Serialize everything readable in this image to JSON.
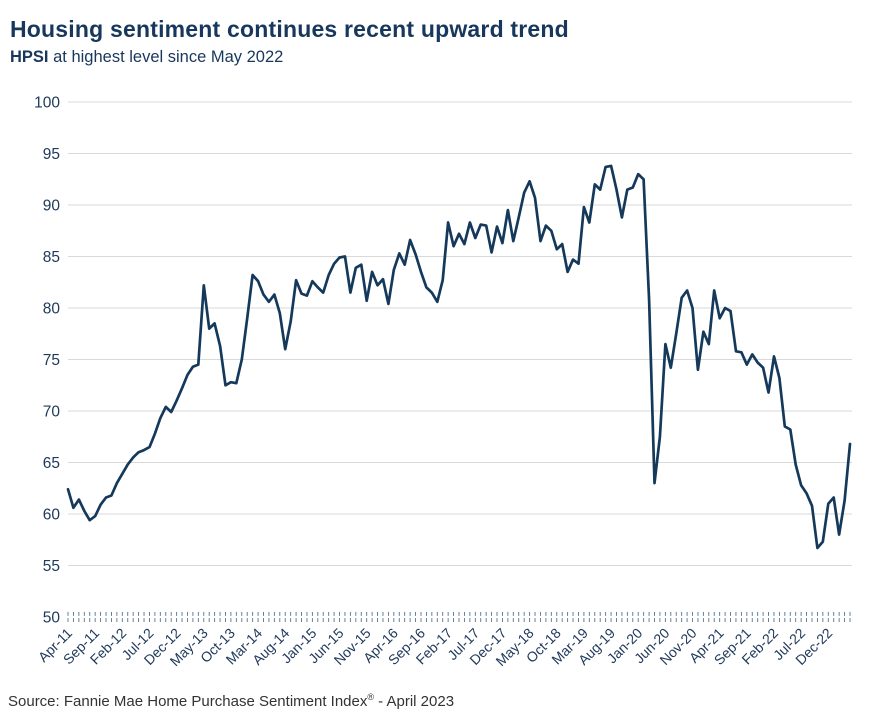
{
  "chart_data": {
    "type": "line",
    "title": "Housing sentiment continues recent upward trend",
    "subtitle_bold": "HPSI",
    "subtitle_rest": " at highest level since May 2022",
    "series_name": "HPSI",
    "x_start": "Apr-11",
    "x_end": "Apr-23",
    "x_tick_every_n_months": 5,
    "x_tick_labels": [
      "Apr-11",
      "Sep-11",
      "Feb-12",
      "Jul-12",
      "Dec-12",
      "May-13",
      "Oct-13",
      "Mar-14",
      "Aug-14",
      "Jan-15",
      "Jun-15",
      "Nov-15",
      "Apr-16",
      "Sep-16",
      "Feb-17",
      "Jul-17",
      "Dec-17",
      "May-18",
      "Oct-18",
      "Mar-19",
      "Aug-19",
      "Jan-20",
      "Jun-20",
      "Nov-20",
      "Apr-21",
      "Sep-21",
      "Feb-22",
      "Jul-22",
      "Dec-22"
    ],
    "y_ticks": [
      50,
      55,
      60,
      65,
      70,
      75,
      80,
      85,
      90,
      95,
      100
    ],
    "ylim": [
      50,
      100
    ],
    "grid": "horizontal",
    "legend": "none",
    "values": [
      62.4,
      60.6,
      61.4,
      60.3,
      59.4,
      59.8,
      60.9,
      61.6,
      61.8,
      63.0,
      63.9,
      64.8,
      65.5,
      66.0,
      66.2,
      66.5,
      67.8,
      69.3,
      70.4,
      69.9,
      71.0,
      72.2,
      73.5,
      74.3,
      74.5,
      82.2,
      78.0,
      78.5,
      76.3,
      72.5,
      72.8,
      72.7,
      75.0,
      79.0,
      83.2,
      82.6,
      81.3,
      80.6,
      81.3,
      79.5,
      76.0,
      78.7,
      82.7,
      81.4,
      81.2,
      82.6,
      82.0,
      81.5,
      83.2,
      84.3,
      84.9,
      85.0,
      81.5,
      83.9,
      84.2,
      80.7,
      83.5,
      82.2,
      82.8,
      80.4,
      83.7,
      85.3,
      84.2,
      86.6,
      85.2,
      83.5,
      82.0,
      81.5,
      80.6,
      82.7,
      88.3,
      86.0,
      87.2,
      86.2,
      88.3,
      86.8,
      88.1,
      88.0,
      85.4,
      87.9,
      86.3,
      89.5,
      86.5,
      88.8,
      91.2,
      92.3,
      90.7,
      86.5,
      88.0,
      87.5,
      85.7,
      86.2,
      83.5,
      84.7,
      84.3,
      89.8,
      88.3,
      92.0,
      91.5,
      93.7,
      93.8,
      91.5,
      88.8,
      91.5,
      91.7,
      93.0,
      92.5,
      80.8,
      63.0,
      67.5,
      76.5,
      74.2,
      77.5,
      81.0,
      81.7,
      80.0,
      74.0,
      77.7,
      76.5,
      81.7,
      79.0,
      80.0,
      79.7,
      75.8,
      75.7,
      74.5,
      75.5,
      74.7,
      74.2,
      71.8,
      75.3,
      73.2,
      68.5,
      68.2,
      64.8,
      62.8,
      62.0,
      60.8,
      56.7,
      57.3,
      61.0,
      61.6,
      58.0,
      61.3,
      66.8
    ]
  },
  "source_note": {
    "prefix": "Source: Fannie Mae Home Purchase Sentiment Index",
    "registered": "®",
    "suffix": " - April 2023"
  },
  "colors": {
    "line": "#14395B",
    "heading": "#17375C",
    "axis_text": "#203A5C",
    "grid": "#D9D9D9",
    "tick": "#54708C",
    "source_text": "#333333"
  }
}
